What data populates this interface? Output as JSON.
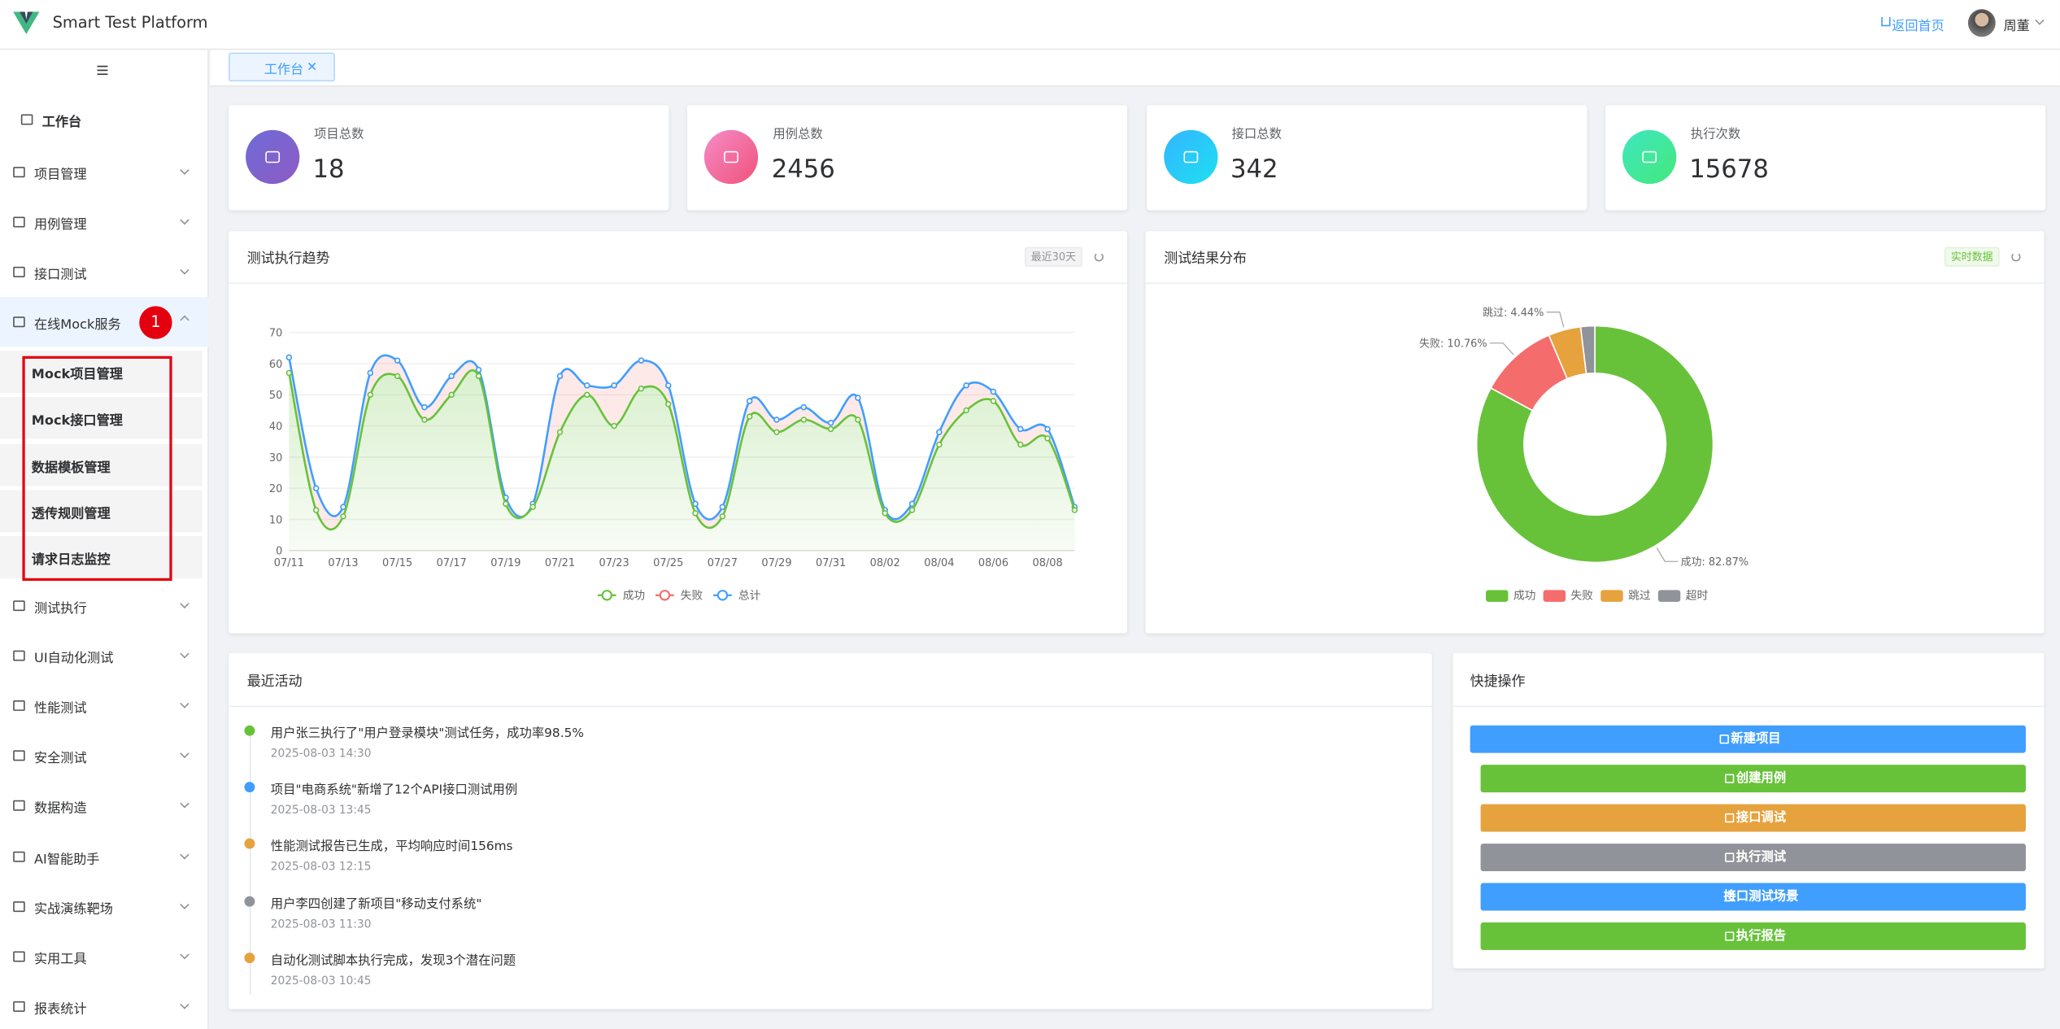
{
  "header": {
    "title": "Smart Test Platform",
    "home_link": "返回首页",
    "user": "周董"
  },
  "sidebar": {
    "workbench": "工作台",
    "annotation": "1",
    "items": [
      {
        "label": "项目管理"
      },
      {
        "label": "用例管理"
      },
      {
        "label": "接口测试"
      },
      {
        "label": "在线Mock服务",
        "children": [
          "Mock项目管理",
          "Mock接口管理",
          "数据模板管理",
          "透传规则管理",
          "请求日志监控"
        ]
      },
      {
        "label": "测试执行"
      },
      {
        "label": "UI自动化测试"
      },
      {
        "label": "性能测试"
      },
      {
        "label": "安全测试"
      },
      {
        "label": "数据构造"
      },
      {
        "label": "AI智能助手"
      },
      {
        "label": "实战演练靶场"
      },
      {
        "label": "实用工具"
      },
      {
        "label": "报表统计"
      }
    ]
  },
  "tabs": [
    "工作台"
  ],
  "stats": [
    {
      "label": "项目总数",
      "value": 18
    },
    {
      "label": "用例总数",
      "value": 2456
    },
    {
      "label": "接口总数",
      "value": 342
    },
    {
      "label": "执行次数",
      "value": 15678
    }
  ],
  "chart_data": [
    {
      "type": "line",
      "title": "测试执行趋势",
      "tag": "最近30天",
      "categories": [
        "07/11",
        null,
        "07/13",
        null,
        "07/15",
        null,
        "07/17",
        null,
        "07/19",
        null,
        "07/21",
        null,
        "07/23",
        null,
        "07/25",
        null,
        "07/27",
        null,
        "07/29",
        null,
        "07/31",
        null,
        "08/02",
        null,
        "08/04",
        null,
        "08/06",
        null,
        "08/08",
        null
      ],
      "series": [
        {
          "name": "成功",
          "color": "#67c23a",
          "values": [
            57,
            13,
            11,
            50,
            56,
            42,
            50,
            56,
            15,
            14,
            38,
            50,
            40,
            52,
            47,
            12,
            11,
            43,
            38,
            42,
            39,
            42,
            12,
            13,
            34,
            45,
            48,
            34,
            36,
            13
          ]
        },
        {
          "name": "失败",
          "color": "#f56c6c",
          "stacked": true,
          "values": [
            5,
            7,
            3,
            7,
            5,
            4,
            6,
            2,
            2,
            1,
            18,
            3,
            13,
            9,
            6,
            3,
            3,
            5,
            4,
            4,
            2,
            7,
            1,
            2,
            4,
            8,
            3,
            5,
            3,
            1
          ]
        },
        {
          "name": "总计",
          "color": "#409eff",
          "values": [
            62,
            20,
            14,
            57,
            61,
            46,
            56,
            58,
            17,
            15,
            56,
            53,
            53,
            61,
            53,
            15,
            14,
            48,
            42,
            46,
            41,
            49,
            13,
            15,
            38,
            53,
            51,
            39,
            39,
            14
          ]
        }
      ],
      "ylim": [
        0,
        70
      ],
      "yticks": [
        0,
        10,
        20,
        30,
        40,
        50,
        60,
        70
      ],
      "grid": true
    },
    {
      "type": "pie",
      "title": "测试结果分布",
      "tag": "实时数据",
      "categories": [
        "成功",
        "失败",
        "跳过",
        "超时"
      ],
      "values": [
        82.87,
        10.76,
        4.44,
        1.93
      ],
      "value_labels": [
        "成功: 82.87%",
        "失败: 10.76%",
        "跳过: 4.44%",
        null
      ],
      "colors": [
        "#67c23a",
        "#f56c6c",
        "#e6a23c",
        "#909399"
      ],
      "donut": true
    }
  ],
  "activities": {
    "title": "最近活动",
    "items": [
      {
        "text": "用户张三执行了\"用户登录模块\"测试任务，成功率98.5%",
        "time": "2025-08-03 14:30",
        "color": "#67c23a"
      },
      {
        "text": "项目\"电商系统\"新增了12个API接口测试用例",
        "time": "2025-08-03 13:45",
        "color": "#409eff"
      },
      {
        "text": "性能测试报告已生成，平均响应时间156ms",
        "time": "2025-08-03 12:15",
        "color": "#e6a23c"
      },
      {
        "text": "用户李四创建了新项目\"移动支付系统\"",
        "time": "2025-08-03 11:30",
        "color": "#909399"
      },
      {
        "text": "自动化测试脚本执行完成，发现3个潜在问题",
        "time": "2025-08-03 10:45",
        "color": "#e6a23c"
      }
    ]
  },
  "quick_actions": {
    "title": "快捷操作",
    "buttons": [
      {
        "label": "新建项目",
        "color": "#409eff"
      },
      {
        "label": "创建用例",
        "color": "#67c23a"
      },
      {
        "label": "接口调试",
        "color": "#e6a23c"
      },
      {
        "label": "执行测试",
        "color": "#909399"
      },
      {
        "label": "接口测试场景",
        "color": "#409eff"
      },
      {
        "label": "执行报告",
        "color": "#67c23a"
      }
    ]
  }
}
